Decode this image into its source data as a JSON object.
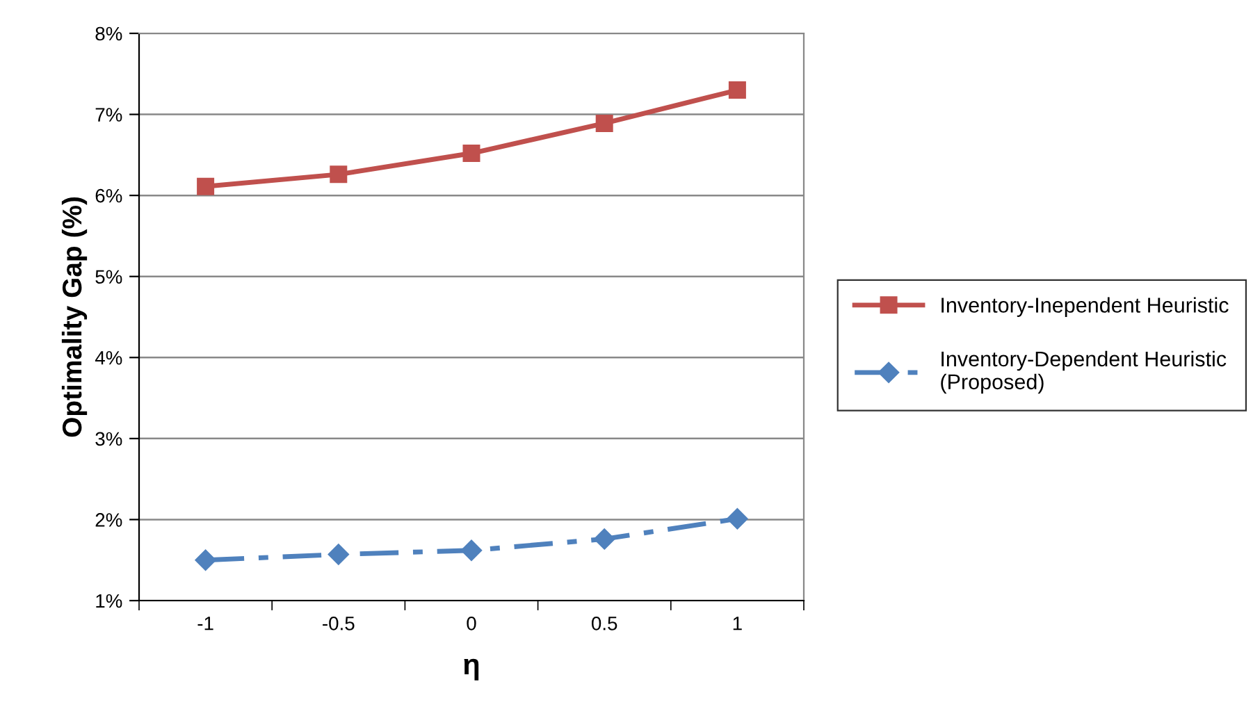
{
  "chart_data": {
    "type": "line",
    "xlabel": "η",
    "ylabel": "Optimality Gap (%)",
    "categories": [
      "-1",
      "-0.5",
      "0",
      "0.5",
      "1"
    ],
    "series": [
      {
        "name": "Inventory-Inependent Heuristic",
        "color": "#c0504d",
        "values": [
          6.11,
          6.26,
          6.52,
          6.89,
          7.3
        ],
        "marker": "square",
        "line_style": "solid"
      },
      {
        "name": "Inventory-Dependent Heuristic\n(Proposed)",
        "color": "#4f81bd",
        "values": [
          1.5,
          1.57,
          1.62,
          1.76,
          2.01
        ],
        "marker": "diamond",
        "line_style": "dashed"
      }
    ],
    "ylim": [
      1,
      8
    ],
    "yticks": [
      {
        "value": 1,
        "label": "1%"
      },
      {
        "value": 2,
        "label": "2%"
      },
      {
        "value": 3,
        "label": "3%"
      },
      {
        "value": 4,
        "label": "4%"
      },
      {
        "value": 5,
        "label": "5%"
      },
      {
        "value": 6,
        "label": "6%"
      },
      {
        "value": 7,
        "label": "7%"
      },
      {
        "value": 8,
        "label": "8%"
      }
    ],
    "grid": "y",
    "legend": "right"
  }
}
